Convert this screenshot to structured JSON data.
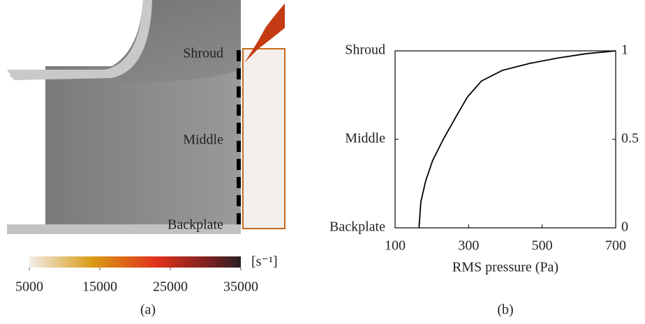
{
  "panel_a": {
    "labels": [
      "Shroud",
      "Middle",
      "Backplate"
    ],
    "colorbar": {
      "range": [
        5000,
        35000
      ],
      "ticks": [
        5000,
        15000,
        25000,
        35000
      ],
      "unit": "[s⁻¹]"
    },
    "caption": "(a)"
  },
  "chart_data": {
    "type": "line",
    "caption": "(b)",
    "xlabel": "RMS pressure (Pa)",
    "x": [
      165,
      170,
      183,
      202,
      231,
      269,
      297,
      335,
      392,
      468,
      544,
      620,
      700
    ],
    "series": [
      {
        "name": "RMS pressure",
        "color": "#000000",
        "values": [
          0,
          0.146,
          0.264,
          0.38,
          0.5,
          0.64,
          0.74,
          0.83,
          0.89,
          0.93,
          0.96,
          0.984,
          1
        ]
      }
    ],
    "xlim": [
      100,
      700
    ],
    "xticks": [
      100,
      300,
      500,
      700
    ],
    "ylim": [
      0,
      1
    ],
    "yticks": [
      {
        "value": 0,
        "label": "Backplate"
      },
      {
        "value": 0.5,
        "label": "Middle"
      },
      {
        "value": 1,
        "label": "Shroud"
      }
    ],
    "y2lim": [
      0,
      1
    ],
    "y2ticks": [
      0,
      0.5,
      1
    ]
  }
}
